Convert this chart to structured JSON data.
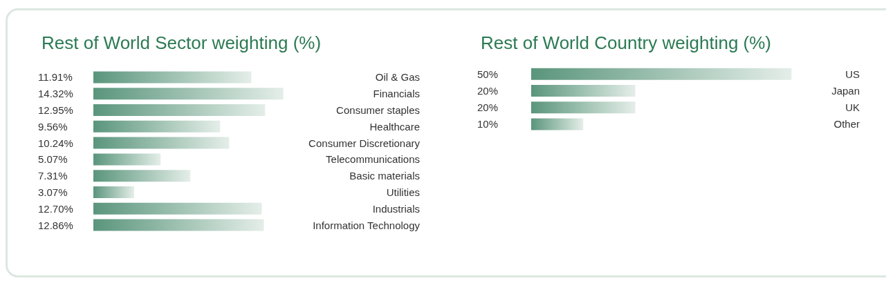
{
  "chart_data": [
    {
      "type": "bar",
      "orientation": "horizontal",
      "title": "Rest of World Sector weighting (%)",
      "categories": [
        "Oil & Gas",
        "Financials",
        "Consumer staples",
        "Healthcare",
        "Consumer Discretionary",
        "Telecommunications",
        "Basic materials",
        "Utilities",
        "Industrials",
        "Information Technology"
      ],
      "values": [
        11.91,
        14.32,
        12.95,
        9.56,
        10.24,
        5.07,
        7.31,
        3.07,
        12.7,
        12.86
      ],
      "value_labels": [
        "11.91%",
        "14.32%",
        "12.95%",
        "9.56%",
        "10.24%",
        "5.07%",
        "7.31%",
        "3.07%",
        "12.70%",
        "12.86%"
      ],
      "color": "#5a957c"
    },
    {
      "type": "bar",
      "orientation": "horizontal",
      "title": "Rest of World Country weighting (%)",
      "categories": [
        "US",
        "Japan",
        "UK",
        "Other"
      ],
      "values": [
        50,
        20,
        20,
        10
      ],
      "value_labels": [
        "50%",
        "20%",
        "20%",
        "10%"
      ],
      "color": "#5a957c"
    }
  ]
}
